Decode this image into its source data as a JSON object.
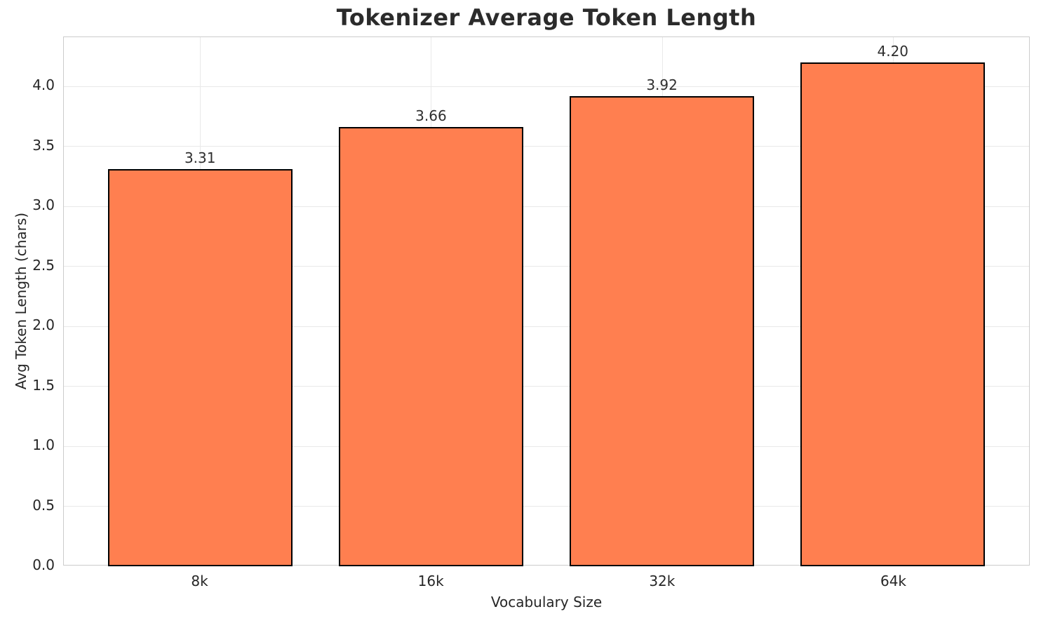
{
  "chart_data": {
    "type": "bar",
    "title": "Tokenizer Average Token Length",
    "xlabel": "Vocabulary Size",
    "ylabel": "Avg Token Length (chars)",
    "categories": [
      "8k",
      "16k",
      "32k",
      "64k"
    ],
    "values": [
      3.31,
      3.66,
      3.92,
      4.2
    ],
    "bar_labels": [
      "3.31",
      "3.66",
      "3.92",
      "4.20"
    ],
    "ytick_labels": [
      "0.0",
      "0.5",
      "1.0",
      "1.5",
      "2.0",
      "2.5",
      "3.0",
      "3.5",
      "4.0"
    ],
    "yticks": [
      0,
      0.5,
      1,
      1.5,
      2,
      2.5,
      3,
      3.5,
      4
    ],
    "ylim": [
      0,
      4.41
    ],
    "grid": true,
    "legend_position": "none",
    "colors": {
      "bar_fill": "#FF7F50",
      "bar_edge": "#000000",
      "grid": "#e9e9e9",
      "spine": "#cccccc",
      "text": "#262626",
      "title": "#2b2b2b",
      "background": "#ffffff"
    }
  }
}
